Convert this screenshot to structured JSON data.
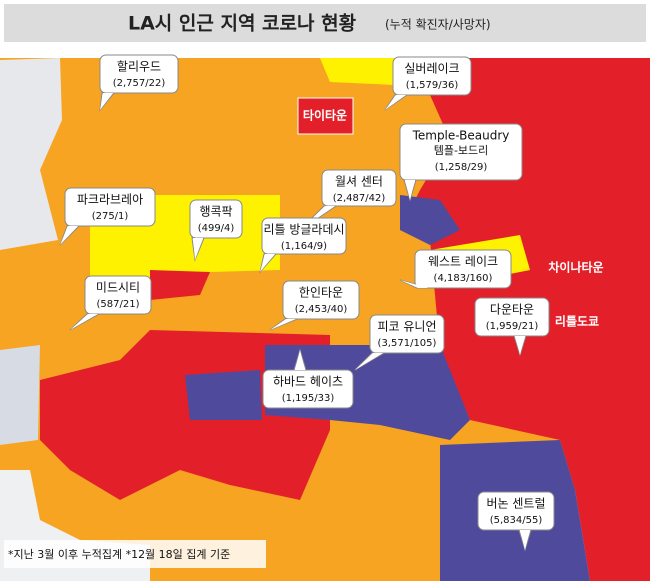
{
  "header": {
    "title": "LA시 인근 지역 코로나 현황",
    "subtitle": "(누적 확진자/사망자)"
  },
  "callouts": [
    {
      "name": "할리우드",
      "counts": "(2,757/22)"
    },
    {
      "name": "실버레이크",
      "counts": "(1,579/36)"
    },
    {
      "name": "Temple-Beaudry",
      "subname": "템플-보드리",
      "counts": "(1,258/29)"
    },
    {
      "name": "월셔 센터",
      "counts": "(2,487/42)"
    },
    {
      "name": "파크라브레아",
      "counts": "(275/1)"
    },
    {
      "name": "행콕팍",
      "counts": "(499/4)"
    },
    {
      "name": "리틀 방글라데시",
      "counts": "(1,164/9)"
    },
    {
      "name": "웨스트 레이크",
      "counts": "(4,183/160)"
    },
    {
      "name": "미드시티",
      "counts": "(587/21)"
    },
    {
      "name": "한인타운",
      "counts": "(2,453/40)"
    },
    {
      "name": "다운타운",
      "counts": "(1,959/21)"
    },
    {
      "name": "피코 유니언",
      "counts": "(3,571/105)"
    },
    {
      "name": "하바드 헤이츠",
      "counts": "(1,195/33)"
    },
    {
      "name": "버논 센트럴",
      "counts": "(5,834/55)"
    }
  ],
  "map_labels": [
    "타이타운",
    "차이나타운",
    "리틀도쿄"
  ],
  "footnote": "*지난 3월 이후 누적집계 *12월 18일 집계 기준"
}
